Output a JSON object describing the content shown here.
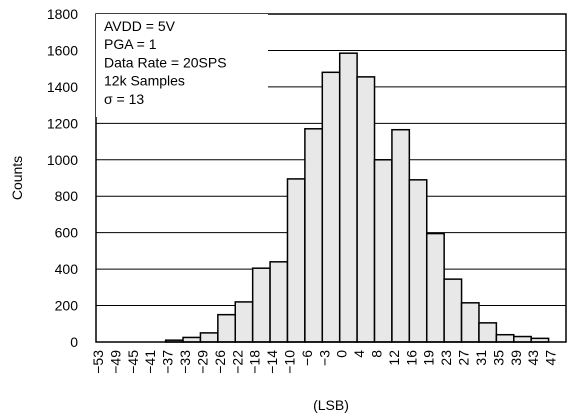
{
  "chart_data": {
    "type": "bar",
    "title": "",
    "xlabel": "(LSB)",
    "ylabel": "Counts",
    "ylim": [
      0,
      1800
    ],
    "yticks": [
      0,
      200,
      400,
      600,
      800,
      1000,
      1200,
      1400,
      1600,
      1800
    ],
    "categories": [
      "-53",
      "-49",
      "-45",
      "-41",
      "-37",
      "-33",
      "-29",
      "-26",
      "-22",
      "-18",
      "-14",
      "-10",
      "-6",
      "-3",
      "0",
      "4",
      "8",
      "12",
      "16",
      "19",
      "23",
      "27",
      "31",
      "35",
      "39",
      "43",
      "47"
    ],
    "values": [
      0,
      0,
      0,
      0,
      10,
      25,
      50,
      150,
      220,
      405,
      440,
      895,
      1170,
      1480,
      1585,
      1455,
      1000,
      1165,
      890,
      595,
      345,
      215,
      105,
      40,
      30,
      20,
      0
    ],
    "grid": "horizontal",
    "colors": {
      "bar_fill": "#e8e8e8",
      "bar_stroke": "#000000",
      "grid": "#000000"
    },
    "annotation_lines": [
      "AVDD = 5V",
      "PGA = 1",
      "Data Rate = 20SPS",
      "12k Samples",
      "σ = 13"
    ]
  }
}
